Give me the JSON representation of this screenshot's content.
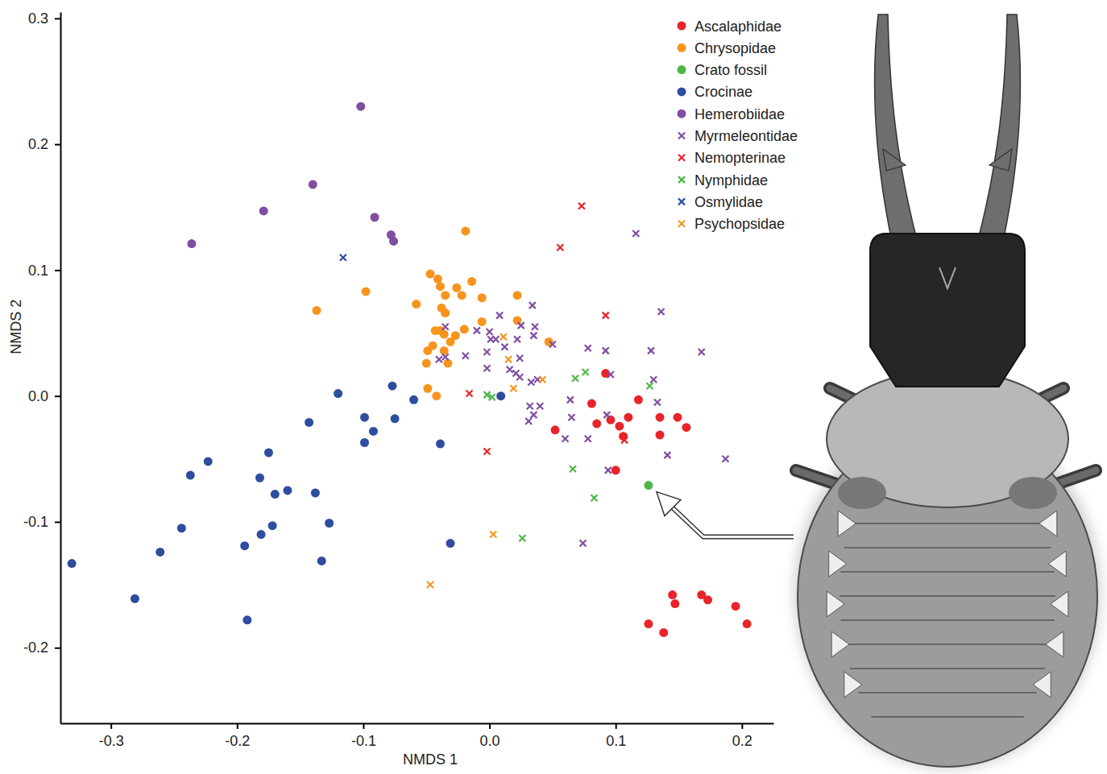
{
  "chart_data": {
    "type": "scatter",
    "xlabel": "NMDS 1",
    "ylabel": "NMDS 2",
    "xlim": [
      -0.34,
      0.225
    ],
    "ylim": [
      -0.26,
      0.305
    ],
    "xticks": [
      -0.3,
      -0.2,
      -0.1,
      {
        "value": 0,
        "label": "0.0"
      },
      0.1,
      0.2
    ],
    "yticks": [
      -0.2,
      -0.1,
      {
        "value": 0,
        "label": "0.0"
      },
      0.1,
      0.2,
      0.3
    ],
    "legend": "top-right",
    "series": [
      {
        "name": "Ascalaphidae",
        "color": "#e8242b",
        "marker": "circle",
        "x": [
          0.052,
          0.081,
          0.085,
          0.092,
          0.096,
          0.103,
          0.106,
          0.11,
          0.1,
          0.118,
          0.135,
          0.135,
          0.149,
          0.156,
          0.126,
          0.138,
          0.145,
          0.147,
          0.168,
          0.173,
          0.195,
          0.204
        ],
        "values": [
          -0.027,
          -0.006,
          -0.022,
          0.018,
          -0.019,
          -0.024,
          -0.032,
          -0.017,
          -0.059,
          -0.003,
          -0.017,
          -0.031,
          -0.017,
          -0.025,
          -0.181,
          -0.188,
          -0.158,
          -0.165,
          -0.158,
          -0.162,
          -0.167,
          -0.181
        ]
      },
      {
        "name": "Chrysopidae",
        "color": "#f7941d",
        "marker": "circle",
        "x": [
          -0.019,
          -0.137,
          -0.098,
          -0.058,
          -0.047,
          -0.039,
          -0.026,
          -0.014,
          -0.035,
          -0.022,
          -0.041,
          -0.038,
          -0.035,
          -0.043,
          -0.039,
          -0.036,
          -0.027,
          -0.02,
          -0.006,
          -0.006,
          0.022,
          0.022,
          -0.049,
          -0.045,
          -0.05,
          -0.033,
          -0.036,
          -0.049,
          -0.042,
          0.047,
          -0.031
        ],
        "values": [
          0.131,
          0.068,
          0.083,
          0.073,
          0.097,
          0.087,
          0.086,
          0.091,
          0.08,
          0.08,
          0.093,
          0.07,
          0.066,
          0.052,
          0.052,
          0.049,
          0.048,
          0.053,
          0.059,
          0.078,
          0.08,
          0.06,
          0.036,
          0.04,
          0.026,
          0.026,
          0.036,
          0.006,
          0.0,
          0.043,
          0.043
        ]
      },
      {
        "name": "Crato fossil",
        "color": "#4db848",
        "marker": "circle",
        "x": [
          0.126
        ],
        "values": [
          -0.071
        ]
      },
      {
        "name": "Crocinae",
        "color": "#2e4d9f",
        "marker": "circle",
        "x": [
          -0.331,
          -0.281,
          -0.261,
          -0.244,
          -0.237,
          -0.223,
          -0.194,
          -0.192,
          -0.182,
          -0.181,
          -0.175,
          -0.172,
          -0.17,
          -0.16,
          -0.143,
          -0.138,
          -0.133,
          -0.127,
          -0.12,
          -0.099,
          -0.099,
          -0.092,
          -0.077,
          -0.075,
          -0.06,
          -0.039,
          -0.031,
          0.009
        ],
        "values": [
          -0.133,
          -0.161,
          -0.124,
          -0.105,
          -0.063,
          -0.052,
          -0.119,
          -0.178,
          -0.065,
          -0.11,
          -0.045,
          -0.103,
          -0.078,
          -0.075,
          -0.021,
          -0.077,
          -0.131,
          -0.101,
          0.002,
          -0.017,
          -0.037,
          -0.028,
          0.008,
          -0.018,
          -0.003,
          -0.038,
          -0.117,
          0.0
        ]
      },
      {
        "name": "Hemerobiidae",
        "color": "#7f4ea1",
        "marker": "circle",
        "x": [
          -0.102,
          -0.14,
          -0.179,
          -0.236,
          -0.091,
          -0.078,
          -0.076
        ],
        "values": [
          0.23,
          0.168,
          0.147,
          0.121,
          0.142,
          0.128,
          0.123
        ]
      },
      {
        "name": "Myrmeleontidae",
        "color": "#7f4ea1",
        "marker": "x",
        "x": [
          0.116,
          0.136,
          0.008,
          0.034,
          -0.035,
          -0.01,
          0.0,
          0.005,
          0.001,
          0.025,
          0.036,
          0.035,
          0.022,
          0.012,
          -0.002,
          -0.019,
          -0.04,
          -0.035,
          0.024,
          0.05,
          0.078,
          0.092,
          0.128,
          0.168,
          -0.002,
          0.016,
          0.021,
          0.024,
          0.033,
          0.038,
          0.13,
          0.032,
          0.04,
          0.064,
          0.035,
          0.031,
          0.065,
          0.133,
          0.093,
          0.06,
          0.078,
          0.096,
          0.141,
          0.187,
          0.094,
          0.074
        ],
        "values": [
          0.129,
          0.067,
          0.064,
          0.072,
          0.055,
          0.052,
          0.051,
          0.045,
          0.045,
          0.056,
          0.055,
          0.048,
          0.045,
          0.039,
          0.035,
          0.032,
          0.029,
          0.031,
          0.03,
          0.041,
          0.038,
          0.036,
          0.036,
          0.035,
          0.022,
          0.021,
          0.018,
          0.015,
          0.011,
          0.013,
          0.013,
          -0.008,
          -0.008,
          -0.003,
          -0.015,
          -0.02,
          -0.017,
          -0.005,
          -0.015,
          -0.034,
          -0.034,
          0.017,
          -0.047,
          -0.05,
          -0.059,
          -0.117
        ]
      },
      {
        "name": "Nemopterinae",
        "color": "#e8242b",
        "marker": "x",
        "x": [
          0.073,
          0.056,
          0.092,
          -0.016,
          -0.002,
          0.107
        ],
        "values": [
          0.151,
          0.118,
          0.064,
          0.002,
          -0.044,
          -0.035
        ]
      },
      {
        "name": "Nymphidae",
        "color": "#4db848",
        "marker": "x",
        "x": [
          -0.002,
          0.002,
          0.068,
          0.076,
          0.127,
          0.066,
          0.083,
          0.026
        ],
        "values": [
          0.001,
          -0.001,
          0.014,
          0.019,
          0.008,
          -0.058,
          -0.081,
          -0.113
        ]
      },
      {
        "name": "Osmylidae",
        "color": "#2e4d9f",
        "marker": "x",
        "x": [
          -0.116
        ],
        "values": [
          0.11
        ]
      },
      {
        "name": "Psychopsidae",
        "color": "#f7941d",
        "marker": "x",
        "x": [
          0.011,
          0.015,
          0.019,
          0.042,
          0.003,
          -0.047
        ],
        "values": [
          0.047,
          0.029,
          0.006,
          0.013,
          -0.11,
          -0.15
        ]
      }
    ]
  }
}
